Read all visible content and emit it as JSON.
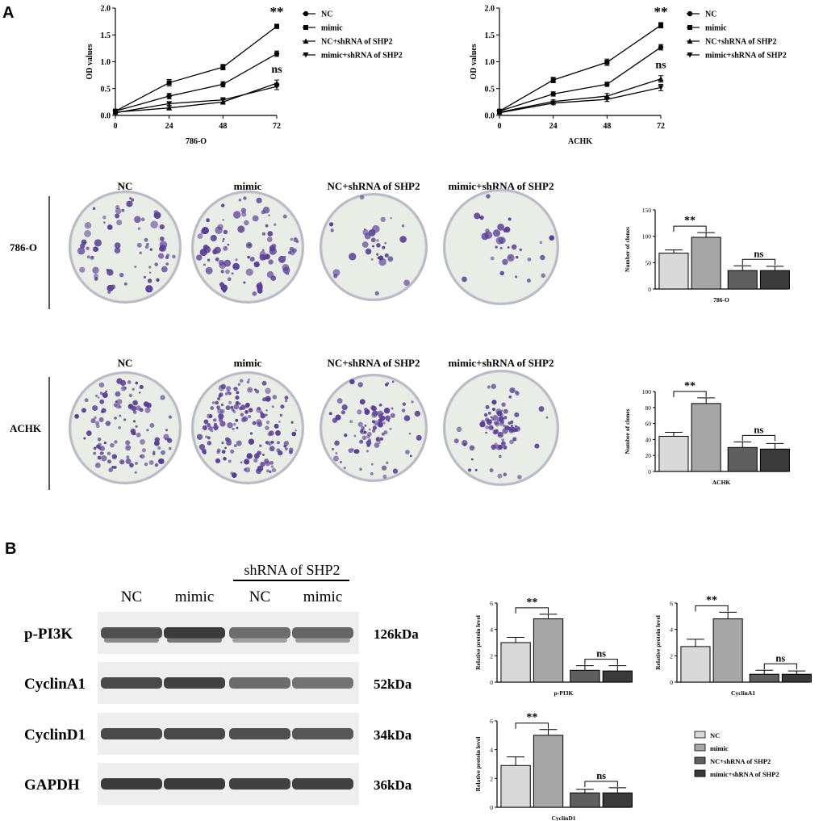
{
  "panel_labels": [
    "A",
    "B"
  ],
  "colony": {
    "group_labels": [
      "NC",
      "mimic",
      "NC+shRNA of SHP2",
      "mimic+shRNA of SHP2"
    ],
    "row_labels": [
      "786-O",
      "ACHK"
    ],
    "colors": {
      "plate_bg": "#e8ede6",
      "rim": "#b9b9c4",
      "colony": "#5a3d96"
    },
    "densities": [
      [
        1.0,
        1.3,
        0.45,
        0.45
      ],
      [
        1.6,
        2.2,
        1.3,
        1.2
      ]
    ]
  },
  "western": {
    "header": "shRNA of SHP2",
    "lane_labels": [
      "NC",
      "mimic",
      "NC",
      "mimic"
    ],
    "proteins": [
      "p-PI3K",
      "CyclinA1",
      "CyclinD1",
      "GAPDH"
    ],
    "sizes": [
      "126kDa",
      "52kDa",
      "34kDa",
      "36kDa"
    ],
    "band_intensity": [
      [
        0.8,
        0.95,
        0.6,
        0.65
      ],
      [
        0.85,
        0.9,
        0.6,
        0.55
      ],
      [
        0.85,
        0.85,
        0.8,
        0.75
      ],
      [
        0.95,
        0.95,
        0.9,
        0.9
      ]
    ]
  },
  "legend_bar": [
    "NC",
    "mimic",
    "NC+shRNA of SHP2",
    "mimic+shRNA of SHP2"
  ],
  "bar_colors": [
    "#d9d9d9",
    "#a6a6a6",
    "#5f5f5f",
    "#3a3a3a"
  ],
  "chart_data": [
    {
      "type": "line",
      "xlabel": "786-O",
      "ylabel": "OD values",
      "x": [
        0,
        24,
        48,
        72
      ],
      "xlim": [
        0,
        72
      ],
      "ylim": [
        0,
        2.0
      ],
      "yticks": [
        "0.0",
        "0.5",
        "1.0",
        "1.5",
        "2.0"
      ],
      "series": [
        {
          "name": "NC",
          "marker": "circle",
          "values": [
            0.08,
            0.36,
            0.58,
            1.15
          ],
          "err": [
            0.02,
            0.05,
            0.05,
            0.05
          ]
        },
        {
          "name": "mimic",
          "marker": "square",
          "values": [
            0.08,
            0.61,
            0.9,
            1.66
          ],
          "err": [
            0.02,
            0.06,
            0.05,
            0.04
          ]
        },
        {
          "name": "NC+shRNA of SHP2",
          "marker": "triangle-up",
          "values": [
            0.06,
            0.14,
            0.25,
            0.6
          ],
          "err": [
            0.02,
            0.03,
            0.04,
            0.06
          ]
        },
        {
          "name": "mimic+shRNA of SHP2",
          "marker": "triangle-down",
          "values": [
            0.05,
            0.22,
            0.29,
            0.54
          ],
          "err": [
            0.02,
            0.03,
            0.04,
            0.06
          ]
        }
      ],
      "annotations": [
        {
          "text": "**",
          "x": 72,
          "y": 1.85
        },
        {
          "text": "ns",
          "x": 72,
          "y": 0.8
        }
      ]
    },
    {
      "type": "line",
      "xlabel": "ACHK",
      "ylabel": "OD values",
      "x": [
        0,
        24,
        48,
        72
      ],
      "xlim": [
        0,
        72
      ],
      "ylim": [
        0,
        2.0
      ],
      "yticks": [
        "0.0",
        "0.5",
        "1.0",
        "1.5",
        "2.0"
      ],
      "series": [
        {
          "name": "NC",
          "marker": "circle",
          "values": [
            0.08,
            0.4,
            0.58,
            1.27
          ],
          "err": [
            0.02,
            0.04,
            0.04,
            0.05
          ]
        },
        {
          "name": "mimic",
          "marker": "square",
          "values": [
            0.08,
            0.66,
            0.99,
            1.68
          ],
          "err": [
            0.02,
            0.05,
            0.06,
            0.05
          ]
        },
        {
          "name": "NC+shRNA of SHP2",
          "marker": "triangle-up",
          "values": [
            0.06,
            0.26,
            0.36,
            0.68
          ],
          "err": [
            0.02,
            0.03,
            0.05,
            0.06
          ]
        },
        {
          "name": "mimic+shRNA of SHP2",
          "marker": "triangle-down",
          "values": [
            0.05,
            0.23,
            0.3,
            0.52
          ],
          "err": [
            0.02,
            0.03,
            0.04,
            0.06
          ]
        }
      ],
      "annotations": [
        {
          "text": "**",
          "x": 72,
          "y": 1.85
        },
        {
          "text": "ns",
          "x": 72,
          "y": 0.88
        }
      ]
    },
    {
      "type": "bar",
      "xlabel": "786-O",
      "ylabel": "Number of clones",
      "ylim": [
        0,
        150
      ],
      "yticks": [
        "0",
        "50",
        "100",
        "150"
      ],
      "values": [
        68,
        98,
        35,
        35
      ],
      "err": [
        6,
        9,
        9,
        8
      ],
      "annotations": [
        "**",
        "ns"
      ]
    },
    {
      "type": "bar",
      "xlabel": "ACHK",
      "ylabel": "Number of clones",
      "ylim": [
        0,
        100
      ],
      "yticks": [
        "0",
        "20",
        "40",
        "60",
        "80",
        "100"
      ],
      "values": [
        44,
        85,
        30,
        28
      ],
      "err": [
        5,
        7,
        7,
        7
      ],
      "annotations": [
        "**",
        "ns"
      ]
    },
    {
      "type": "bar",
      "xlabel": "p-PI3K",
      "ylabel": "Relative protein level",
      "ylim": [
        0,
        6
      ],
      "yticks": [
        "0",
        "2",
        "4",
        "6"
      ],
      "values": [
        3.0,
        4.8,
        0.9,
        0.85
      ],
      "err": [
        0.4,
        0.35,
        0.35,
        0.4
      ],
      "annotations": [
        "**",
        "ns"
      ]
    },
    {
      "type": "bar",
      "xlabel": "CyclinA1",
      "ylabel": "Relative protein level",
      "ylim": [
        0,
        6
      ],
      "yticks": [
        "0",
        "2",
        "4",
        "6"
      ],
      "values": [
        2.7,
        4.8,
        0.6,
        0.6
      ],
      "err": [
        0.55,
        0.5,
        0.3,
        0.25
      ],
      "annotations": [
        "**",
        "ns"
      ]
    },
    {
      "type": "bar",
      "xlabel": "CyclinD1",
      "ylabel": "Relative protein level",
      "ylim": [
        0,
        6
      ],
      "yticks": [
        "0",
        "2",
        "4",
        "6"
      ],
      "values": [
        2.9,
        5.0,
        1.0,
        1.0
      ],
      "err": [
        0.6,
        0.4,
        0.25,
        0.35
      ],
      "annotations": [
        "**",
        "ns"
      ]
    }
  ]
}
